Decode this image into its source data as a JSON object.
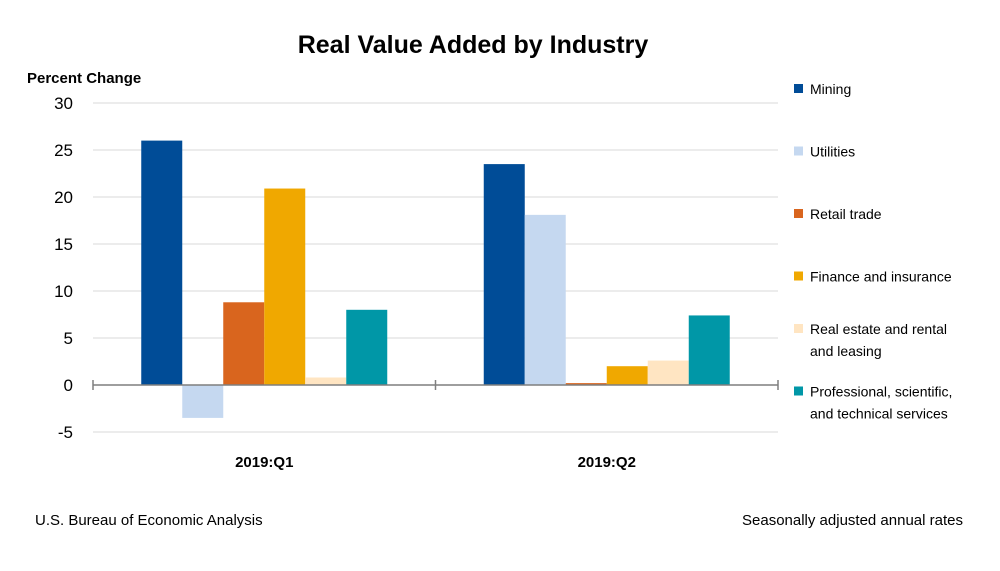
{
  "chart_data": {
    "type": "bar",
    "title": "Real Value Added by Industry",
    "ylabel": "Percent Change",
    "xlabel": "",
    "ylim": [
      -5,
      30
    ],
    "yticks": [
      30,
      25,
      20,
      15,
      10,
      5,
      0,
      -5
    ],
    "ytick_labels": [
      "30",
      "25",
      "20",
      "15",
      "10",
      "5",
      "0",
      "-5"
    ],
    "categories": [
      "2019:Q1",
      "2019:Q2"
    ],
    "grid": true,
    "legend_position": "right",
    "series": [
      {
        "name": "Mining",
        "legend_lines": [
          "Mining"
        ],
        "color": "#004C97",
        "values": [
          26.0,
          23.5
        ]
      },
      {
        "name": "Utilities",
        "legend_lines": [
          "Utilities"
        ],
        "color": "#C5D8F0",
        "values": [
          -3.5,
          18.1
        ]
      },
      {
        "name": "Retail trade",
        "legend_lines": [
          "Retail trade"
        ],
        "color": "#D9651E",
        "values": [
          8.8,
          0.2
        ]
      },
      {
        "name": "Finance and insurance",
        "legend_lines": [
          "Finance and insurance"
        ],
        "color": "#F0A800",
        "values": [
          20.9,
          2.0
        ]
      },
      {
        "name": "Real estate and rental and leasing",
        "legend_lines": [
          "Real estate and rental",
          "and leasing"
        ],
        "color": "#FFE5C2",
        "values": [
          0.8,
          2.6
        ]
      },
      {
        "name": "Professional, scientific, and technical services",
        "legend_lines": [
          "Professional, scientific,",
          "and technical services"
        ],
        "color": "#0097A7",
        "values": [
          8.0,
          7.4
        ]
      }
    ]
  },
  "footer": {
    "source": "U.S. Bureau of Economic Analysis",
    "note": "Seasonally adjusted annual rates"
  }
}
